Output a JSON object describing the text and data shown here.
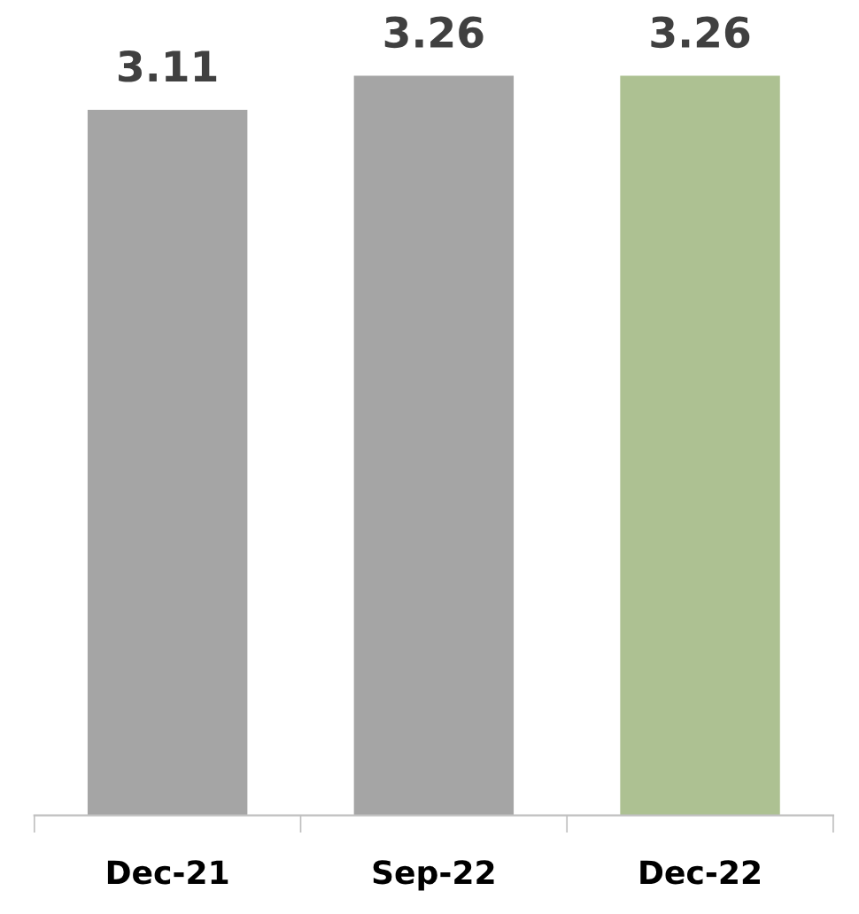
{
  "chart_data": {
    "type": "bar",
    "categories": [
      "Dec-21",
      "Sep-22",
      "Dec-22"
    ],
    "values": [
      3.11,
      3.26,
      3.26
    ],
    "colors": [
      "#a5a5a5",
      "#a5a5a5",
      "#adc192"
    ],
    "data_labels": true,
    "grid": false,
    "legend": false
  }
}
